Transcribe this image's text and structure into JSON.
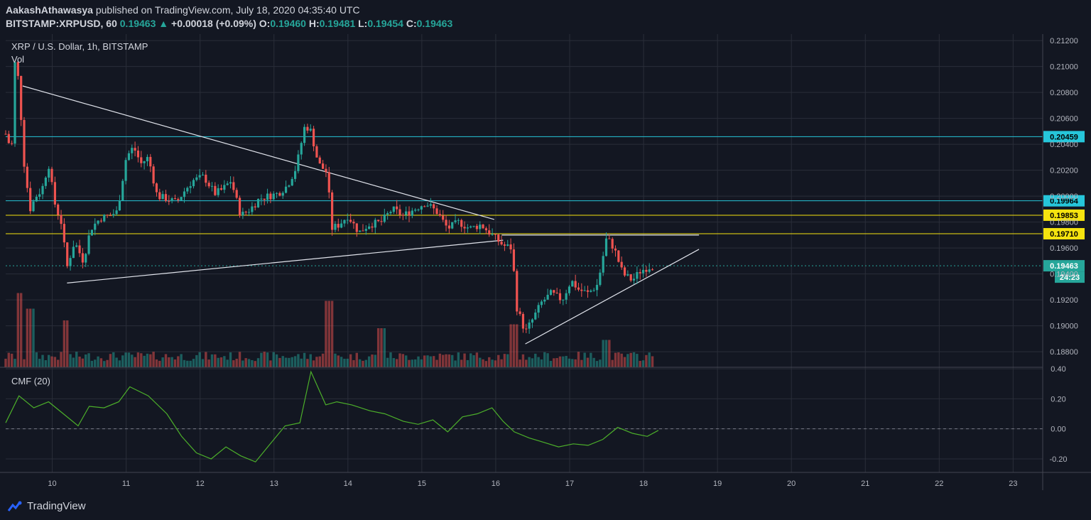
{
  "header": {
    "author": "AakashAthawasya",
    "published_text": "published on TradingView.com, July 18, 2020 04:35:40 UTC",
    "symbol": "BITSTAMP:XRPUSD, 60",
    "last": "0.19463",
    "change_arrow": "▲",
    "change": "+0.00018 (+0.09%)",
    "o_label": "O:",
    "o_value": "0.19460",
    "h_label": "H:",
    "h_value": "0.19481",
    "l_label": "L:",
    "l_value": "0.19454",
    "c_label": "C:",
    "c_value": "0.19463"
  },
  "chart_data": [
    {
      "type": "candlestick",
      "title": "XRP / U.S. Dollar, 1h, BITSTAMP",
      "volume_label": "Vol",
      "x_ticks": [
        "10",
        "11",
        "12",
        "13",
        "14",
        "15",
        "16",
        "17",
        "18",
        "19",
        "20",
        "21",
        "22",
        "23"
      ],
      "y_ticks": [
        "0.21200",
        "0.21000",
        "0.20800",
        "0.20600",
        "0.20400",
        "0.20200",
        "0.20000",
        "0.19800",
        "0.19600",
        "0.19400",
        "0.19200",
        "0.19000",
        "0.18800"
      ],
      "ylim": [
        0.1868,
        0.2125
      ],
      "xlim": [
        9.37,
        23.4
      ],
      "current_price_label": "0.19463",
      "countdown_label": "24:23",
      "horizontal_levels": [
        {
          "value": 0.20459,
          "label": "0.20459",
          "color": "#26c6da"
        },
        {
          "value": 0.19964,
          "label": "0.19964",
          "color": "#26c6da"
        },
        {
          "value": 0.19853,
          "label": "0.19853",
          "color": "#f5e30f"
        },
        {
          "value": 0.1971,
          "label": "0.19710",
          "color": "#f5e30f"
        }
      ],
      "trendlines": [
        {
          "from": [
            9.6,
            0.2085
          ],
          "to": [
            15.98,
            0.1982
          ]
        },
        {
          "from": [
            10.2,
            0.1933
          ],
          "to": [
            16.1,
            0.1966
          ]
        },
        {
          "from": [
            16.08,
            0.197
          ],
          "to": [
            18.75,
            0.197
          ]
        },
        {
          "from": [
            16.4,
            0.1886
          ],
          "to": [
            18.75,
            0.1959
          ]
        }
      ],
      "price_path": [
        [
          9.37,
          0.2048
        ],
        [
          9.45,
          0.2035
        ],
        [
          9.5,
          0.211
        ],
        [
          9.55,
          0.2085
        ],
        [
          9.62,
          0.2025
        ],
        [
          9.7,
          0.199
        ],
        [
          9.78,
          0.2
        ],
        [
          9.86,
          0.2005
        ],
        [
          9.95,
          0.2025
        ],
        [
          10.03,
          0.1995
        ],
        [
          10.12,
          0.198
        ],
        [
          10.2,
          0.1945
        ],
        [
          10.3,
          0.1965
        ],
        [
          10.42,
          0.195
        ],
        [
          10.52,
          0.1975
        ],
        [
          10.65,
          0.1983
        ],
        [
          10.78,
          0.1985
        ],
        [
          10.88,
          0.1988
        ],
        [
          11.0,
          0.203
        ],
        [
          11.1,
          0.2038
        ],
        [
          11.2,
          0.2025
        ],
        [
          11.3,
          0.203
        ],
        [
          11.42,
          0.2
        ],
        [
          11.55,
          0.1998
        ],
        [
          11.68,
          0.1995
        ],
        [
          11.8,
          0.2005
        ],
        [
          11.9,
          0.2012
        ],
        [
          12.05,
          0.2015
        ],
        [
          12.2,
          0.2002
        ],
        [
          12.3,
          0.2005
        ],
        [
          12.42,
          0.2012
        ],
        [
          12.55,
          0.1985
        ],
        [
          12.68,
          0.199
        ],
        [
          12.8,
          0.1998
        ],
        [
          12.92,
          0.2
        ],
        [
          13.05,
          0.2002
        ],
        [
          13.18,
          0.2008
        ],
        [
          13.3,
          0.2022
        ],
        [
          13.42,
          0.2055
        ],
        [
          13.5,
          0.205
        ],
        [
          13.6,
          0.2025
        ],
        [
          13.72,
          0.2018
        ],
        [
          13.78,
          0.1975
        ],
        [
          13.88,
          0.1978
        ],
        [
          14.0,
          0.1985
        ],
        [
          14.15,
          0.1972
        ],
        [
          14.28,
          0.1978
        ],
        [
          14.45,
          0.198
        ],
        [
          14.6,
          0.199
        ],
        [
          14.75,
          0.1985
        ],
        [
          14.9,
          0.199
        ],
        [
          15.05,
          0.1995
        ],
        [
          15.2,
          0.1988
        ],
        [
          15.35,
          0.1975
        ],
        [
          15.5,
          0.198
        ],
        [
          15.65,
          0.1975
        ],
        [
          15.8,
          0.1978
        ],
        [
          15.95,
          0.197
        ],
        [
          16.1,
          0.1962
        ],
        [
          16.22,
          0.196
        ],
        [
          16.28,
          0.1915
        ],
        [
          16.4,
          0.1895
        ],
        [
          16.5,
          0.1905
        ],
        [
          16.62,
          0.1918
        ],
        [
          16.75,
          0.1925
        ],
        [
          16.9,
          0.192
        ],
        [
          17.02,
          0.1935
        ],
        [
          17.12,
          0.1928
        ],
        [
          17.25,
          0.1925
        ],
        [
          17.38,
          0.1932
        ],
        [
          17.5,
          0.1968
        ],
        [
          17.6,
          0.196
        ],
        [
          17.72,
          0.194
        ],
        [
          17.85,
          0.1935
        ],
        [
          17.95,
          0.1942
        ],
        [
          18.05,
          0.1945
        ],
        [
          18.15,
          0.19463
        ]
      ],
      "volume_peaks": [
        [
          9.55,
          0.95
        ],
        [
          9.7,
          0.75
        ],
        [
          10.18,
          0.6
        ],
        [
          13.75,
          0.85
        ],
        [
          14.45,
          0.5
        ],
        [
          16.25,
          0.55
        ],
        [
          17.5,
          0.35
        ]
      ]
    },
    {
      "type": "line",
      "title": "CMF (20)",
      "y_ticks": [
        "0.40",
        "0.20",
        "0.00",
        "-0.20"
      ],
      "ylim": [
        -0.29,
        0.41
      ],
      "zero_line": 0.0,
      "x": [
        9.37,
        9.55,
        9.75,
        9.95,
        10.15,
        10.35,
        10.5,
        10.7,
        10.9,
        11.05,
        11.3,
        11.55,
        11.75,
        11.95,
        12.15,
        12.35,
        12.55,
        12.75,
        12.95,
        13.15,
        13.35,
        13.5,
        13.7,
        13.85,
        14.05,
        14.3,
        14.5,
        14.75,
        14.95,
        15.15,
        15.35,
        15.55,
        15.75,
        15.95,
        16.1,
        16.25,
        16.45,
        16.65,
        16.85,
        17.05,
        17.25,
        17.45,
        17.65,
        17.85,
        18.05,
        18.2
      ],
      "values": [
        0.04,
        0.22,
        0.14,
        0.18,
        0.1,
        0.02,
        0.15,
        0.14,
        0.18,
        0.28,
        0.22,
        0.1,
        -0.05,
        -0.16,
        -0.2,
        -0.12,
        -0.18,
        -0.22,
        -0.1,
        0.02,
        0.04,
        0.38,
        0.16,
        0.18,
        0.16,
        0.12,
        0.1,
        0.05,
        0.03,
        0.06,
        -0.02,
        0.08,
        0.1,
        0.14,
        0.05,
        -0.02,
        -0.06,
        -0.09,
        -0.12,
        -0.1,
        -0.11,
        -0.07,
        0.01,
        -0.03,
        -0.05,
        -0.01
      ],
      "color": "#4caf2a"
    }
  ],
  "footer": {
    "brand": "TradingView"
  }
}
